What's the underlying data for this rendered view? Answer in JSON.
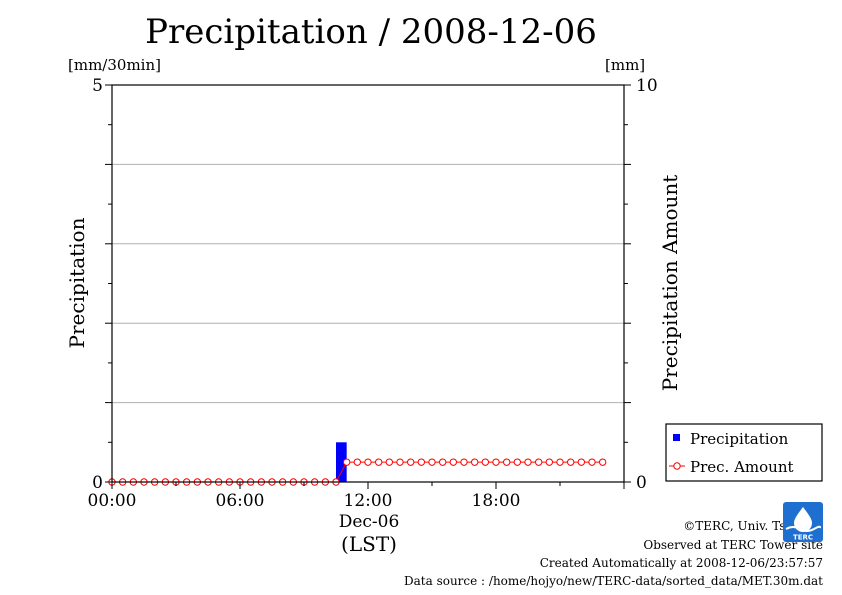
{
  "chart_data": {
    "type": "bar+line",
    "title": "Precipitation / 2008-12-06",
    "left_axis": {
      "label": "Precipitation",
      "unit": "[mm/30min]",
      "range": [
        0,
        5
      ],
      "tick_labels": [
        "0",
        "5"
      ]
    },
    "right_axis": {
      "label": "Precipitation Amount",
      "unit": "[mm]",
      "range": [
        0,
        10
      ],
      "tick_labels": [
        "0",
        "10"
      ]
    },
    "x_axis": {
      "range_hours": [
        0,
        24
      ],
      "tick_labels": [
        "00:00",
        "06:00",
        "12:00",
        "18:00"
      ],
      "date_label": "Dec-06",
      "zone_label": "(LST)"
    },
    "grid": true,
    "legend_position": "bottom-right",
    "series": [
      {
        "name": "Precipitation",
        "kind": "bar",
        "axis": "left",
        "color": "#0000ff",
        "times_h": [
          10.5
        ],
        "values": [
          0.5
        ]
      },
      {
        "name": "Prec. Amount",
        "kind": "line",
        "axis": "right",
        "color": "#ff0000",
        "times_h": [
          0,
          0.5,
          1,
          1.5,
          2,
          2.5,
          3,
          3.5,
          4,
          4.5,
          5,
          5.5,
          6,
          6.5,
          7,
          7.5,
          8,
          8.5,
          9,
          9.5,
          10,
          10.5,
          11,
          11.5,
          12,
          12.5,
          13,
          13.5,
          14,
          14.5,
          15,
          15.5,
          16,
          16.5,
          17,
          17.5,
          18,
          18.5,
          19,
          19.5,
          20,
          20.5,
          21,
          21.5,
          22,
          22.5,
          23
        ],
        "values": [
          0,
          0,
          0,
          0,
          0,
          0,
          0,
          0,
          0,
          0,
          0,
          0,
          0,
          0,
          0,
          0,
          0,
          0,
          0,
          0,
          0,
          0,
          0.5,
          0.5,
          0.5,
          0.5,
          0.5,
          0.5,
          0.5,
          0.5,
          0.5,
          0.5,
          0.5,
          0.5,
          0.5,
          0.5,
          0.5,
          0.5,
          0.5,
          0.5,
          0.5,
          0.5,
          0.5,
          0.5,
          0.5,
          0.5,
          0.5
        ]
      }
    ]
  },
  "credits": {
    "copyright": "©TERC, Univ. Tsukuba",
    "site": "Observed at TERC Tower site",
    "created": "Created Automatically at 2008-12-06/23:57:57",
    "source": "Data source : /home/hojyo/new/TERC-data/sorted_data/MET.30m.dat"
  },
  "logo": {
    "text": "TERC",
    "color": "#1e6fd0"
  }
}
